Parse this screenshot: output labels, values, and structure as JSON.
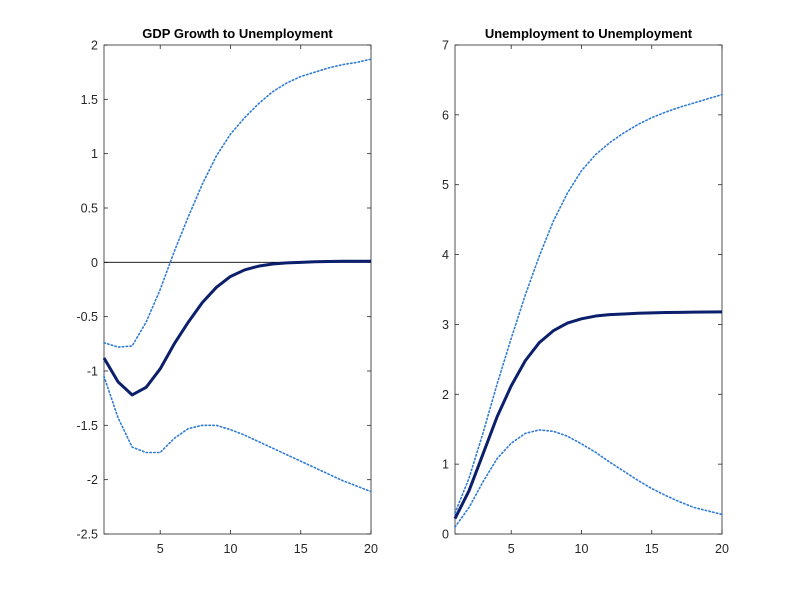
{
  "chart_data": [
    {
      "type": "line",
      "title": "GDP Growth to Unemployment",
      "xlabel": "",
      "ylabel": "",
      "xlim": [
        1,
        20
      ],
      "ylim": [
        -2.5,
        2
      ],
      "xticks": [
        5,
        10,
        15,
        20
      ],
      "yticks": [
        -2.5,
        -2,
        -1.5,
        -1,
        -0.5,
        0,
        0.5,
        1,
        1.5,
        2
      ],
      "ytick_labels": [
        "-2.5",
        "-2",
        "-1.5",
        "-1",
        "-0.5",
        "0",
        "0.5",
        "1",
        "1.5",
        "2"
      ],
      "zero_line": true,
      "grid": false,
      "x": [
        1,
        2,
        3,
        4,
        5,
        6,
        7,
        8,
        9,
        10,
        11,
        12,
        13,
        14,
        15,
        16,
        17,
        18,
        19,
        20
      ],
      "series": [
        {
          "style": "solid",
          "color": "#0b1f6b",
          "values": [
            -0.88,
            -1.1,
            -1.22,
            -1.15,
            -0.98,
            -0.75,
            -0.55,
            -0.37,
            -0.23,
            -0.13,
            -0.07,
            -0.035,
            -0.015,
            -0.005,
            0.0,
            0.005,
            0.008,
            0.01,
            0.01,
            0.01
          ]
        },
        {
          "style": "dotted",
          "color": "#2f7bd6",
          "values": [
            -0.74,
            -0.78,
            -0.77,
            -0.55,
            -0.25,
            0.1,
            0.42,
            0.72,
            0.98,
            1.18,
            1.33,
            1.46,
            1.57,
            1.65,
            1.71,
            1.75,
            1.79,
            1.82,
            1.84,
            1.87
          ]
        },
        {
          "style": "dotted",
          "color": "#2f7bd6",
          "values": [
            -1.05,
            -1.43,
            -1.7,
            -1.75,
            -1.75,
            -1.62,
            -1.53,
            -1.5,
            -1.5,
            -1.54,
            -1.59,
            -1.65,
            -1.71,
            -1.77,
            -1.83,
            -1.89,
            -1.95,
            -2.01,
            -2.06,
            -2.11
          ]
        }
      ]
    },
    {
      "type": "line",
      "title": "Unemployment to Unemployment",
      "xlabel": "",
      "ylabel": "",
      "xlim": [
        1,
        20
      ],
      "ylim": [
        0,
        7
      ],
      "xticks": [
        5,
        10,
        15,
        20
      ],
      "yticks": [
        0,
        1,
        2,
        3,
        4,
        5,
        6,
        7
      ],
      "ytick_labels": [
        "0",
        "1",
        "2",
        "3",
        "4",
        "5",
        "6",
        "7"
      ],
      "zero_line": false,
      "grid": false,
      "x": [
        1,
        2,
        3,
        4,
        5,
        6,
        7,
        8,
        9,
        10,
        11,
        12,
        13,
        14,
        15,
        16,
        17,
        18,
        19,
        20
      ],
      "series": [
        {
          "style": "solid",
          "color": "#0b1f6b",
          "values": [
            0.22,
            0.62,
            1.15,
            1.68,
            2.12,
            2.48,
            2.74,
            2.91,
            3.02,
            3.08,
            3.12,
            3.14,
            3.15,
            3.16,
            3.165,
            3.17,
            3.173,
            3.176,
            3.178,
            3.18
          ]
        },
        {
          "style": "dotted",
          "color": "#2f7bd6",
          "values": [
            0.3,
            0.8,
            1.45,
            2.15,
            2.8,
            3.42,
            3.98,
            4.48,
            4.88,
            5.2,
            5.43,
            5.6,
            5.74,
            5.86,
            5.96,
            6.04,
            6.11,
            6.17,
            6.23,
            6.29
          ]
        },
        {
          "style": "dotted",
          "color": "#2f7bd6",
          "values": [
            0.1,
            0.38,
            0.75,
            1.08,
            1.3,
            1.44,
            1.49,
            1.47,
            1.4,
            1.29,
            1.17,
            1.03,
            0.9,
            0.77,
            0.65,
            0.55,
            0.46,
            0.38,
            0.33,
            0.28
          ]
        }
      ]
    }
  ]
}
